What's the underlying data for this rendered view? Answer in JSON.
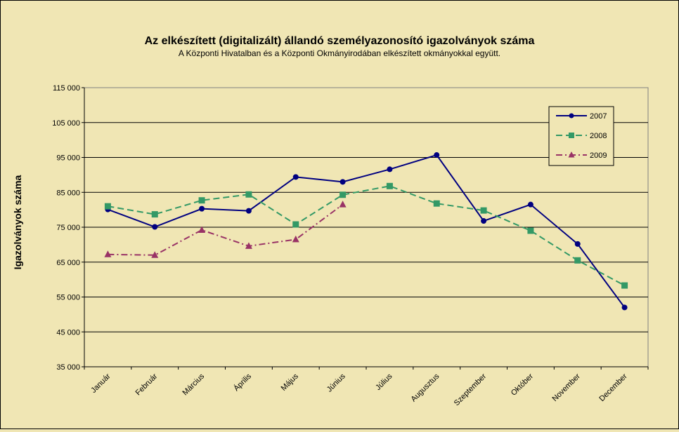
{
  "chart_data": {
    "type": "line",
    "title": "Az elkészített (digitalizált) állandó személyazonosító igazolványok száma",
    "subtitle": "A Központi Hivatalban és a Központi Okmányirodában elkészített okmányokkal együtt.",
    "xlabel": "",
    "ylabel": "Igazolványok száma",
    "ylim": [
      35000,
      115000
    ],
    "yticks": [
      35000,
      45000,
      55000,
      65000,
      75000,
      85000,
      95000,
      105000,
      115000
    ],
    "ytick_labels": [
      "35 000",
      "45 000",
      "55 000",
      "65 000",
      "75 000",
      "85 000",
      "95 000",
      "105 000",
      "115 000"
    ],
    "grid": true,
    "legend_position": "top-right",
    "categories": [
      "Január",
      "Február",
      "Március",
      "Április",
      "Május",
      "Június",
      "Július",
      "Augusztus",
      "Szeptember",
      "Október",
      "November",
      "December"
    ],
    "series": [
      {
        "name": "2007",
        "color": "#000080",
        "marker": "circle",
        "dash": "solid",
        "values": [
          80100,
          75100,
          80300,
          79700,
          89400,
          88000,
          91600,
          95700,
          76800,
          81500,
          70200,
          52000
        ]
      },
      {
        "name": "2008",
        "color": "#339966",
        "marker": "square",
        "dash": "dashed",
        "values": [
          81000,
          78700,
          82700,
          84400,
          75800,
          84300,
          86800,
          81800,
          79800,
          74000,
          65500,
          58300
        ]
      },
      {
        "name": "2009",
        "color": "#993366",
        "marker": "triangle",
        "dash": "dashdot",
        "values": [
          67200,
          67000,
          74200,
          69600,
          71500,
          81500,
          null,
          null,
          null,
          null,
          null,
          null
        ]
      }
    ]
  }
}
